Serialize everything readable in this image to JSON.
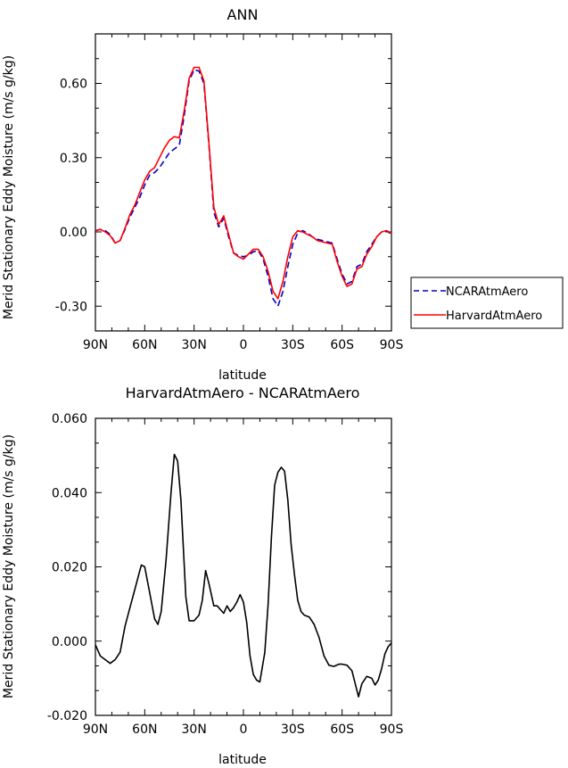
{
  "chart_data": [
    {
      "type": "line",
      "title": "ANN",
      "xlabel": "latitude",
      "ylabel": "Merid Stationary Eddy Moisture (m/s g/kg)",
      "xlim": [
        90,
        -90
      ],
      "ylim": [
        -0.4,
        0.8
      ],
      "xticks": [
        90,
        60,
        30,
        0,
        -30,
        -60,
        -90
      ],
      "xtick_labels": [
        "90N",
        "60N",
        "30N",
        "0",
        "30S",
        "60S",
        "90S"
      ],
      "yticks": [
        -0.3,
        0.0,
        0.3,
        0.6
      ],
      "ytick_labels": [
        "-0.30",
        "0.00",
        "0.30",
        "0.60"
      ],
      "legend_position": "right",
      "series": [
        {
          "name": "NCARAtmAero",
          "color": "#0000cc",
          "dash": "dashed",
          "x": [
            90,
            87,
            84,
            81,
            78,
            75,
            72,
            69,
            66,
            63,
            60,
            57,
            54,
            51,
            48,
            45,
            42,
            39,
            36,
            33,
            30,
            27,
            24,
            21,
            18,
            15,
            12,
            9,
            6,
            3,
            0,
            -3,
            -6,
            -9,
            -12,
            -15,
            -18,
            -21,
            -24,
            -27,
            -30,
            -33,
            -36,
            -39,
            -42,
            -45,
            -48,
            -51,
            -54,
            -57,
            -60,
            -63,
            -66,
            -69,
            -72,
            -75,
            -78,
            -81,
            -84,
            -87,
            -90
          ],
          "y": [
            0.005,
            0.01,
            0.005,
            -0.01,
            -0.045,
            -0.035,
            0.01,
            0.06,
            0.1,
            0.14,
            0.19,
            0.23,
            0.24,
            0.26,
            0.29,
            0.32,
            0.335,
            0.35,
            0.47,
            0.61,
            0.655,
            0.65,
            0.6,
            0.35,
            0.08,
            0.02,
            0.055,
            -0.02,
            -0.085,
            -0.095,
            -0.1,
            -0.095,
            -0.08,
            -0.075,
            -0.11,
            -0.18,
            -0.27,
            -0.3,
            -0.24,
            -0.14,
            -0.05,
            -0.005,
            0.005,
            -0.005,
            -0.02,
            -0.03,
            -0.035,
            -0.04,
            -0.045,
            -0.11,
            -0.17,
            -0.21,
            -0.2,
            -0.14,
            -0.13,
            -0.08,
            -0.05,
            -0.02,
            0.0,
            0.005,
            -0.01
          ]
        },
        {
          "name": "HarvardAtmAero",
          "color": "#ff0000",
          "dash": "solid",
          "x": [
            90,
            87,
            84,
            81,
            78,
            75,
            72,
            69,
            66,
            63,
            60,
            57,
            54,
            51,
            48,
            45,
            42,
            39,
            36,
            33,
            30,
            27,
            24,
            21,
            18,
            15,
            12,
            9,
            6,
            3,
            0,
            -3,
            -6,
            -9,
            -12,
            -15,
            -18,
            -21,
            -24,
            -27,
            -30,
            -33,
            -36,
            -39,
            -42,
            -45,
            -48,
            -51,
            -54,
            -57,
            -60,
            -63,
            -66,
            -69,
            -72,
            -75,
            -78,
            -81,
            -84,
            -87,
            -90
          ],
          "y": [
            0.005,
            0.01,
            0.0,
            -0.015,
            -0.045,
            -0.035,
            0.015,
            0.07,
            0.11,
            0.16,
            0.21,
            0.245,
            0.26,
            0.3,
            0.34,
            0.37,
            0.385,
            0.38,
            0.49,
            0.62,
            0.665,
            0.665,
            0.61,
            0.36,
            0.1,
            0.03,
            0.065,
            -0.01,
            -0.085,
            -0.1,
            -0.11,
            -0.09,
            -0.07,
            -0.07,
            -0.1,
            -0.16,
            -0.24,
            -0.27,
            -0.2,
            -0.1,
            -0.02,
            0.005,
            0.0,
            -0.01,
            -0.02,
            -0.035,
            -0.04,
            -0.045,
            -0.05,
            -0.12,
            -0.18,
            -0.22,
            -0.21,
            -0.15,
            -0.14,
            -0.09,
            -0.06,
            -0.02,
            0.0,
            0.005,
            -0.005
          ]
        }
      ]
    },
    {
      "type": "line",
      "title": "HarvardAtmAero - NCARAtmAero",
      "xlabel": "latitude",
      "ylabel": "Merid Stationary Eddy Moisture (m/s g/kg)",
      "xlim": [
        90,
        -90
      ],
      "ylim": [
        -0.02,
        0.06
      ],
      "xticks": [
        90,
        60,
        30,
        0,
        -30,
        -60,
        -90
      ],
      "xtick_labels": [
        "90N",
        "60N",
        "30N",
        "0",
        "30S",
        "60S",
        "90S"
      ],
      "yticks": [
        -0.02,
        0.0,
        0.02,
        0.04,
        0.06
      ],
      "ytick_labels": [
        "-0.020",
        "0.000",
        "0.020",
        "0.040",
        "0.060"
      ],
      "series": [
        {
          "color": "#000000",
          "dash": "solid",
          "x": [
            90,
            87,
            84,
            81,
            78,
            75,
            72,
            69,
            66,
            63,
            62,
            60,
            57,
            54,
            52,
            50,
            47,
            44,
            42,
            40,
            38,
            35,
            33,
            30,
            27,
            25,
            23,
            21,
            18,
            16,
            14,
            12,
            10,
            8,
            6,
            4,
            2,
            0,
            -2,
            -4,
            -6,
            -8,
            -10,
            -13,
            -15,
            -17,
            -19,
            -21,
            -23,
            -25,
            -27,
            -29,
            -31,
            -33,
            -35,
            -37,
            -40,
            -43,
            -46,
            -49,
            -52,
            -55,
            -58,
            -60,
            -63,
            -66,
            -68,
            -70,
            -72,
            -75,
            -78,
            -80,
            -82,
            -84,
            -86,
            -88,
            -90
          ],
          "y": [
            -0.001,
            -0.004,
            -0.005,
            -0.006,
            -0.005,
            -0.003,
            0.004,
            0.009,
            0.014,
            0.019,
            0.0205,
            0.02,
            0.013,
            0.006,
            0.0045,
            0.008,
            0.022,
            0.04,
            0.0503,
            0.0485,
            0.038,
            0.012,
            0.0055,
            0.0055,
            0.007,
            0.011,
            0.019,
            0.0155,
            0.0095,
            0.0095,
            0.0085,
            0.0075,
            0.0095,
            0.008,
            0.009,
            0.0105,
            0.0125,
            0.0105,
            0.005,
            -0.004,
            -0.009,
            -0.0105,
            -0.011,
            -0.003,
            0.01,
            0.028,
            0.042,
            0.0455,
            0.0468,
            0.0458,
            0.038,
            0.026,
            0.018,
            0.011,
            0.008,
            0.007,
            0.0065,
            0.0045,
            0.001,
            -0.004,
            -0.0065,
            -0.0068,
            -0.0062,
            -0.0062,
            -0.0065,
            -0.008,
            -0.0115,
            -0.015,
            -0.0115,
            -0.0095,
            -0.01,
            -0.0118,
            -0.0105,
            -0.0075,
            -0.0035,
            -0.0015,
            -0.0005
          ]
        }
      ]
    }
  ]
}
